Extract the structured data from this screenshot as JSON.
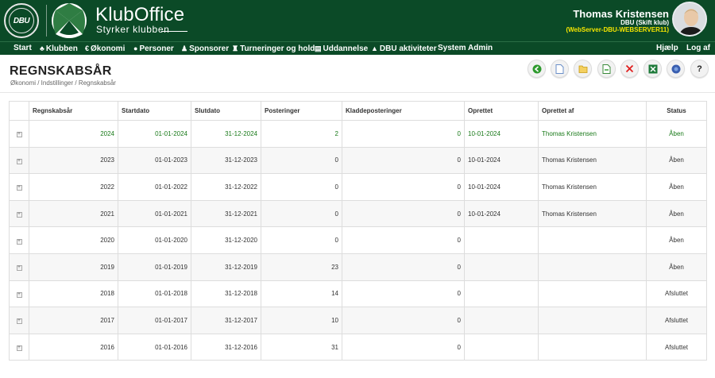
{
  "app": {
    "brand": "KlubOffice",
    "tagline": "Styrker klubben",
    "crest_text": "DBU"
  },
  "user": {
    "name": "Thomas Kristensen",
    "club": "DBU (Skift klub)",
    "server": "(WebServer-DBU-WEBSERVER11)"
  },
  "nav": {
    "items": [
      {
        "label": "Start",
        "icon": ""
      },
      {
        "label": "Klubben",
        "icon": "club-icon"
      },
      {
        "label": "Økonomi",
        "icon": "economy-icon"
      },
      {
        "label": "Personer",
        "icon": "people-icon"
      },
      {
        "label": "Sponsorer",
        "icon": "sponsor-icon"
      },
      {
        "label": "Turneringer og hold",
        "icon": "trophy-icon"
      },
      {
        "label": "Uddannelse",
        "icon": "education-icon"
      },
      {
        "label": "DBU aktiviteter",
        "icon": "graduation-cap-icon"
      },
      {
        "label": "System Admin",
        "icon": ""
      }
    ],
    "right": [
      {
        "label": "Hjælp"
      },
      {
        "label": "Log af"
      }
    ]
  },
  "page": {
    "title": "REGNSKABSÅR",
    "breadcrumb": "Økonomi / Indstillinger / Regnskabsår"
  },
  "toolbar": [
    {
      "name": "back-button",
      "icon": "back-arrow-icon",
      "color": "#2e9a2e"
    },
    {
      "name": "new-button",
      "icon": "new-document-icon",
      "color": "#4a7bc8"
    },
    {
      "name": "open-button",
      "icon": "open-folder-icon",
      "color": "#e0a800"
    },
    {
      "name": "export-button",
      "icon": "export-document-icon",
      "color": "#2e9a2e"
    },
    {
      "name": "delete-button",
      "icon": "delete-x-icon",
      "color": "#e02020"
    },
    {
      "name": "excel-button",
      "icon": "excel-icon",
      "color": "#1e7a3a"
    },
    {
      "name": "info-button",
      "icon": "info-icon",
      "color": "#3a5fb0"
    },
    {
      "name": "help-button",
      "icon": "help-question-icon",
      "color": "#222222"
    }
  ],
  "table": {
    "headers": [
      "",
      "Regnskabsår",
      "Startdato",
      "Slutdato",
      "Posteringer",
      "Kladdeposteringer",
      "Oprettet",
      "Oprettet af",
      "Status"
    ],
    "rows": [
      [
        "2024",
        "01-01-2024",
        "31-12-2024",
        "2",
        "0",
        "10-01-2024",
        "Thomas Kristensen",
        "Åben"
      ],
      [
        "2023",
        "01-01-2023",
        "31-12-2023",
        "0",
        "0",
        "10-01-2024",
        "Thomas Kristensen",
        "Åben"
      ],
      [
        "2022",
        "01-01-2022",
        "31-12-2022",
        "0",
        "0",
        "10-01-2024",
        "Thomas Kristensen",
        "Åben"
      ],
      [
        "2021",
        "01-01-2021",
        "31-12-2021",
        "0",
        "0",
        "10-01-2024",
        "Thomas Kristensen",
        "Åben"
      ],
      [
        "2020",
        "01-01-2020",
        "31-12-2020",
        "0",
        "0",
        "",
        "",
        "Åben"
      ],
      [
        "2019",
        "01-01-2019",
        "31-12-2019",
        "23",
        "0",
        "",
        "",
        "Åben"
      ],
      [
        "2018",
        "01-01-2018",
        "31-12-2018",
        "14",
        "0",
        "",
        "",
        "Afsluttet"
      ],
      [
        "2017",
        "01-01-2017",
        "31-12-2017",
        "10",
        "0",
        "",
        "",
        "Afsluttet"
      ],
      [
        "2016",
        "01-01-2016",
        "31-12-2016",
        "31",
        "0",
        "",
        "",
        "Afsluttet"
      ]
    ]
  },
  "colors": {
    "header_bg": "#0b4a27",
    "current_row": "#1a7a1a",
    "server_text": "#f5e500"
  }
}
